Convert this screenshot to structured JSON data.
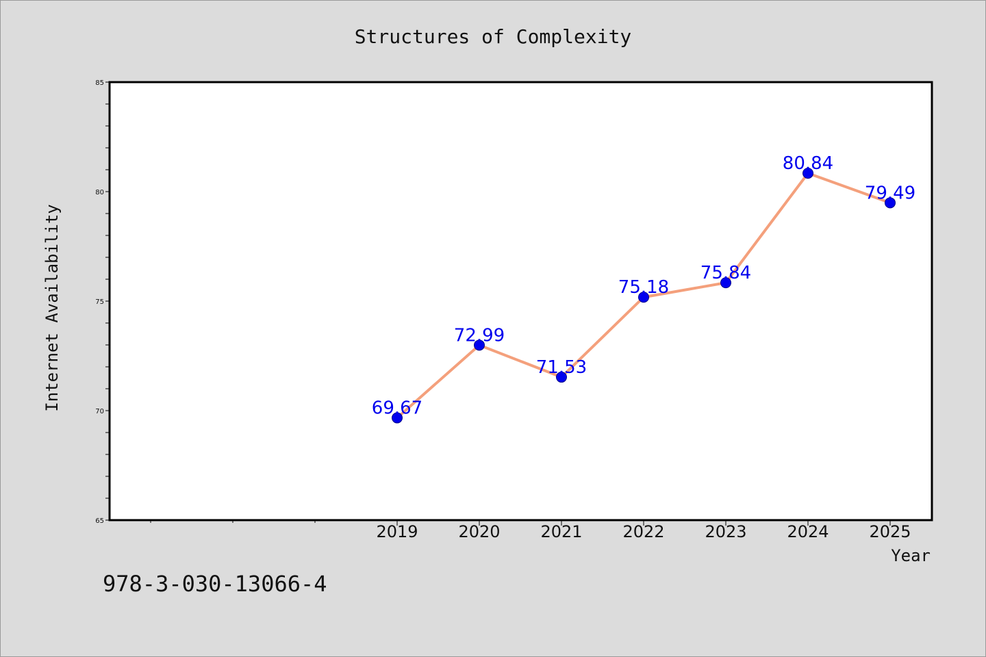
{
  "chart_data": {
    "type": "line",
    "title": "Structures of Complexity",
    "xlabel": "Year",
    "ylabel": "Internet Availability",
    "x": [
      "2019",
      "2020",
      "2021",
      "2022",
      "2023",
      "2024",
      "2025"
    ],
    "series": [
      {
        "values": [
          69.67,
          72.99,
          71.53,
          75.18,
          75.84,
          80.84,
          79.49
        ],
        "data_labels": [
          "69.67",
          "72.99",
          "71.53",
          "75.18",
          "75.84",
          "80.84",
          "79.49"
        ]
      }
    ],
    "ylim": [
      65,
      85
    ],
    "yticks": [
      "65",
      "70",
      "75",
      "80",
      "85"
    ],
    "legend": "none",
    "grid": false,
    "line_color": "#f4a07c",
    "marker_color": "#0000ee",
    "label_color": "#0000ee"
  },
  "annotation": "978-3-030-13066-4"
}
